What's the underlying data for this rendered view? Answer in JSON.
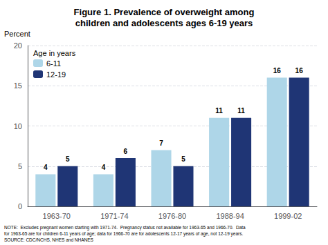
{
  "chart_data": {
    "type": "bar",
    "title": "Figure 1. Prevalence of overweight among\nchildren and adolescents ages 6-19 years",
    "y_label": "Percent",
    "categories": [
      "1963-70",
      "1971-74",
      "1976-80",
      "1988-94",
      "1999-02"
    ],
    "series": [
      {
        "name": "6-11",
        "color": "#aed6e8",
        "values": [
          4,
          4,
          7,
          11,
          16
        ]
      },
      {
        "name": "12-19",
        "color": "#1f3575",
        "values": [
          5,
          6,
          5,
          11,
          16
        ]
      }
    ],
    "legend_title": "Age in years",
    "legend": "upper left",
    "ylim": [
      0,
      20
    ],
    "yticks": [
      0,
      5,
      10,
      15,
      20
    ],
    "grid": true,
    "data_labels": true,
    "annotations": [
      "NOTE:  Excludes pregnant women starting with 1971-74.  Pregnancy status not available for 1963-65 and 1966-70.  Data",
      "for 1963-65 are for children 6-11 years of age; data for 1966-70 are for adolescents 12-17 years of age, not 12-19 years.",
      "SOURCE: CDC/NCHS, NHES and NHANES"
    ]
  }
}
